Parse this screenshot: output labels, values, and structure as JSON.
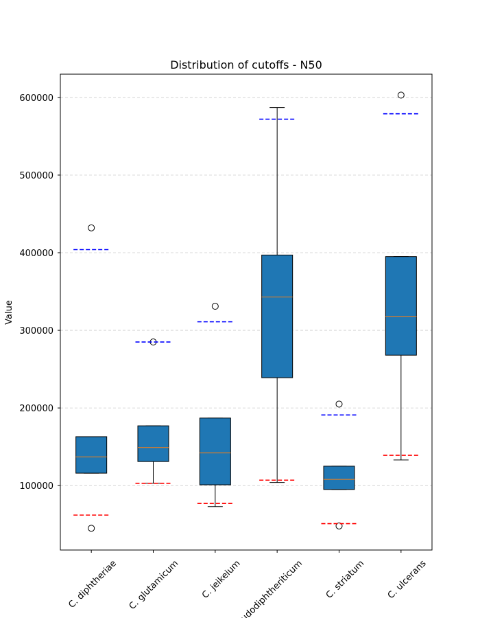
{
  "chart_data": {
    "type": "box",
    "title": "Distribution of cutoffs - N50",
    "xlabel": "",
    "ylabel": "Value",
    "ylim": [
      17000,
      630000
    ],
    "yticks": [
      100000,
      200000,
      300000,
      400000,
      500000,
      600000
    ],
    "grid": "y-dashed",
    "box_color": "#1f77b4",
    "median_color": "#ff7f0e",
    "upper_cutoff_color": "#0000ff",
    "lower_cutoff_color": "#ff0000",
    "categories": [
      "C. diphtheriae",
      "C. glutamicum",
      "C. jeikeium",
      "C. pseudodiphtheriticum",
      "C. striatum",
      "C. ulcerans"
    ],
    "boxes": [
      {
        "category": "C. diphtheriae",
        "whislo": 116000,
        "q1": 116000,
        "median": 137000,
        "q3": 163000,
        "whishi": 163000,
        "fliers": [
          432000,
          45000
        ],
        "upper_cutoff": 404000,
        "lower_cutoff": 62000
      },
      {
        "category": "C. glutamicum",
        "whislo": 103000,
        "q1": 131000,
        "median": 149000,
        "q3": 177000,
        "whishi": 177000,
        "fliers": [
          285000
        ],
        "upper_cutoff": 285000,
        "lower_cutoff": 103000
      },
      {
        "category": "C. jeikeium",
        "whislo": 73000,
        "q1": 101000,
        "median": 142000,
        "q3": 187000,
        "whishi": 187000,
        "fliers": [
          331000
        ],
        "upper_cutoff": 311000,
        "lower_cutoff": 77000
      },
      {
        "category": "C. pseudodiphtheriticum",
        "whislo": 104000,
        "q1": 239000,
        "median": 343000,
        "q3": 397000,
        "whishi": 587000,
        "fliers": [],
        "upper_cutoff": 572000,
        "lower_cutoff": 107000
      },
      {
        "category": "C. striatum",
        "whislo": 95000,
        "q1": 95000,
        "median": 108000,
        "q3": 125000,
        "whishi": 125000,
        "fliers": [
          205000,
          48000
        ],
        "upper_cutoff": 191000,
        "lower_cutoff": 51000
      },
      {
        "category": "C. ulcerans",
        "whislo": 133000,
        "q1": 268000,
        "median": 318000,
        "q3": 395000,
        "whishi": 395000,
        "fliers": [
          603000
        ],
        "upper_cutoff": 579000,
        "lower_cutoff": 139000
      }
    ]
  }
}
